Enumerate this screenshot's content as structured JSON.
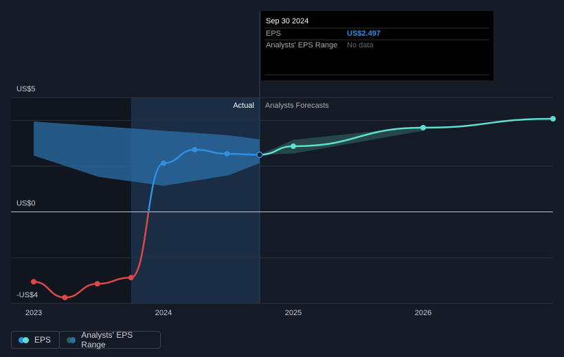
{
  "chart_data": {
    "type": "line",
    "xlim": [
      2022.825,
      2027
    ],
    "xticks": [
      2023,
      2024,
      2025,
      2026
    ],
    "ylim": [
      -4,
      5
    ],
    "yticks": [
      {
        "value": 5,
        "label": "US$5"
      },
      {
        "value": 0,
        "label": "US$0"
      },
      {
        "value": -4,
        "label": "-US$4"
      }
    ],
    "gridlines": [
      4,
      2,
      -2
    ],
    "highlight": [
      2023.75,
      2024.74
    ],
    "annotations": {
      "actual": "Actual",
      "forecast": "Analysts Forecasts"
    },
    "series": [
      {
        "name": "EPS",
        "color": "#2f8fe0",
        "negative_color": "#e04848",
        "forecast_color": "#5de0d0",
        "x": [
          2023.0,
          2023.24,
          2023.49,
          2023.75,
          2024.0,
          2024.24,
          2024.49,
          2024.74
        ],
        "values": [
          -3.05,
          -3.74,
          -3.14,
          -2.87,
          2.13,
          2.72,
          2.54,
          2.497
        ],
        "forecast_x": [
          2024.74,
          2025.0,
          2026.0,
          2027.0
        ],
        "forecast_values": [
          2.497,
          2.87,
          3.68,
          4.07
        ]
      },
      {
        "name": "Analysts' EPS Range",
        "color": "#2b6fa8",
        "forecast_color": "#2c5a5a",
        "x": [
          2023.0,
          2023.5,
          2024.0,
          2024.5,
          2024.74
        ],
        "low": [
          2.46,
          1.53,
          1.14,
          1.6,
          2.13
        ],
        "high": [
          3.95,
          3.75,
          3.55,
          3.35,
          3.17
        ],
        "forecast_x": [
          2024.74,
          2025.0,
          2026.0
        ],
        "forecast_low": [
          2.497,
          2.55,
          3.55
        ],
        "forecast_high": [
          2.497,
          3.15,
          3.75
        ]
      }
    ]
  },
  "tooltip": {
    "date": "Sep 30 2024",
    "rows": [
      {
        "label": "EPS",
        "value": "US$2.497"
      },
      {
        "label": "Analysts' EPS Range",
        "value": "No data"
      }
    ]
  }
}
